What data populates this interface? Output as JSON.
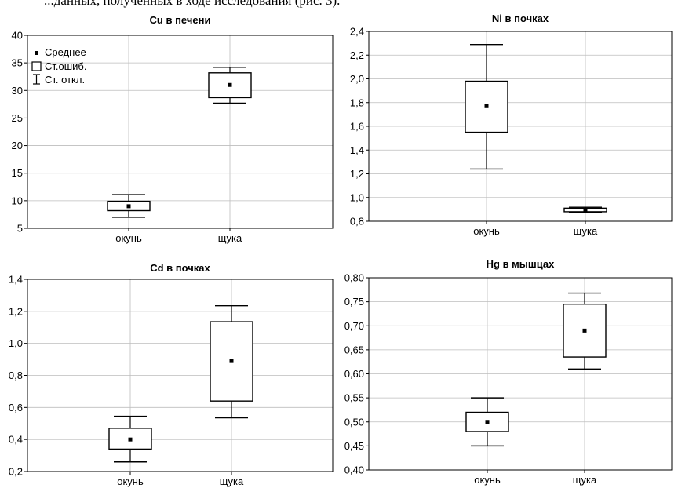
{
  "page_caption_fragment": "...данных, полученных в ходе исследования (рис. 3).",
  "legend": {
    "mean": "Среднее",
    "se": "Ст.ошиб.",
    "sd": "Ст. откл."
  },
  "chart_data": [
    {
      "type": "box",
      "title": "Cu в печени",
      "categories": [
        "окунь",
        "щука"
      ],
      "ylim": [
        5,
        40
      ],
      "yticks": [
        "5",
        "10",
        "15",
        "20",
        "25",
        "30",
        "35",
        "40"
      ],
      "ytick_values": [
        5,
        10,
        15,
        20,
        25,
        30,
        35,
        40
      ],
      "series": [
        {
          "category": "окунь",
          "mean": 9.0,
          "se_low": 8.2,
          "se_high": 9.9,
          "sd_low": 7.0,
          "sd_high": 11.1
        },
        {
          "category": "щука",
          "mean": 31.0,
          "se_low": 28.7,
          "se_high": 33.2,
          "sd_low": 27.7,
          "sd_high": 34.2
        }
      ],
      "legend": true,
      "grid": true
    },
    {
      "type": "box",
      "title": "Ni в почках",
      "categories": [
        "окунь",
        "щука"
      ],
      "ylim": [
        0.8,
        2.4
      ],
      "yticks": [
        "0,8",
        "1,0",
        "1,2",
        "1,4",
        "1,6",
        "1,8",
        "2,0",
        "2,2",
        "2,4"
      ],
      "ytick_values": [
        0.8,
        1.0,
        1.2,
        1.4,
        1.6,
        1.8,
        2.0,
        2.2,
        2.4
      ],
      "series": [
        {
          "category": "окунь",
          "mean": 1.77,
          "se_low": 1.55,
          "se_high": 1.98,
          "sd_low": 1.24,
          "sd_high": 2.29
        },
        {
          "category": "щука",
          "mean": 0.895,
          "se_low": 0.88,
          "se_high": 0.91,
          "sd_low": 0.873,
          "sd_high": 0.918
        }
      ],
      "legend": false,
      "grid": true
    },
    {
      "type": "box",
      "title": "Cd в почках",
      "categories": [
        "окунь",
        "щука"
      ],
      "ylim": [
        0.2,
        1.4
      ],
      "yticks": [
        "0,2",
        "0,4",
        "0,6",
        "0,8",
        "1,0",
        "1,2",
        "1,4"
      ],
      "ytick_values": [
        0.2,
        0.4,
        0.6,
        0.8,
        1.0,
        1.2,
        1.4
      ],
      "series": [
        {
          "category": "окунь",
          "mean": 0.4,
          "se_low": 0.34,
          "se_high": 0.47,
          "sd_low": 0.26,
          "sd_high": 0.545
        },
        {
          "category": "щука",
          "mean": 0.89,
          "se_low": 0.64,
          "se_high": 1.135,
          "sd_low": 0.535,
          "sd_high": 1.235
        }
      ],
      "legend": false,
      "grid": true
    },
    {
      "type": "box",
      "title": "Hg в мышцах",
      "categories": [
        "окунь",
        "щука"
      ],
      "ylim": [
        0.4,
        0.8
      ],
      "yticks": [
        "0,40",
        "0,45",
        "0,50",
        "0,55",
        "0,60",
        "0,65",
        "0,70",
        "0,75",
        "0,80"
      ],
      "ytick_values": [
        0.4,
        0.45,
        0.5,
        0.55,
        0.6,
        0.65,
        0.7,
        0.75,
        0.8
      ],
      "series": [
        {
          "category": "окунь",
          "mean": 0.5,
          "se_low": 0.48,
          "se_high": 0.52,
          "sd_low": 0.45,
          "sd_high": 0.55
        },
        {
          "category": "щука",
          "mean": 0.69,
          "se_low": 0.635,
          "se_high": 0.745,
          "sd_low": 0.61,
          "sd_high": 0.768
        }
      ],
      "legend": false,
      "grid": true
    }
  ]
}
